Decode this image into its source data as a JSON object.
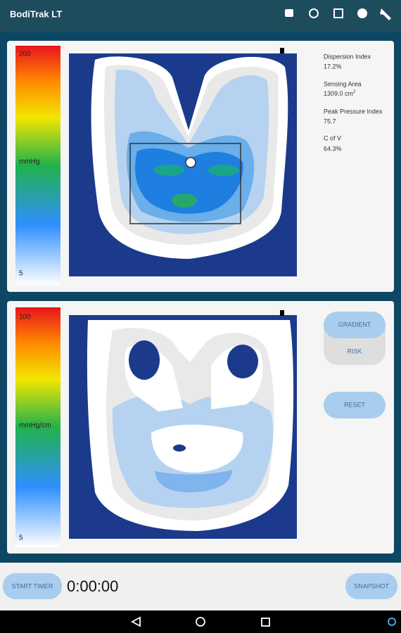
{
  "header": {
    "title": "BodiTrak LT"
  },
  "pressure_panel": {
    "scale": {
      "max": "200",
      "unit": "mmHg",
      "min": "5"
    },
    "stats": [
      {
        "label": "Dispersion Index",
        "value": "17.2%"
      },
      {
        "label": "Sensing Area",
        "value": "1309.0 cm",
        "superscript": "2"
      },
      {
        "label": "Peak Pressure Index",
        "value": "75.7"
      },
      {
        "label": "C of V",
        "value": "64.3%"
      }
    ]
  },
  "gradient_panel": {
    "scale": {
      "max": "100",
      "unit": "mmHg/cm",
      "min": "5"
    },
    "buttons": [
      "GRADIENT",
      "RISK",
      "RESET"
    ]
  },
  "footer": {
    "start_button": "START TIMER",
    "timer": "0:00:00",
    "snapshot_button": "SNAPSHOT"
  }
}
